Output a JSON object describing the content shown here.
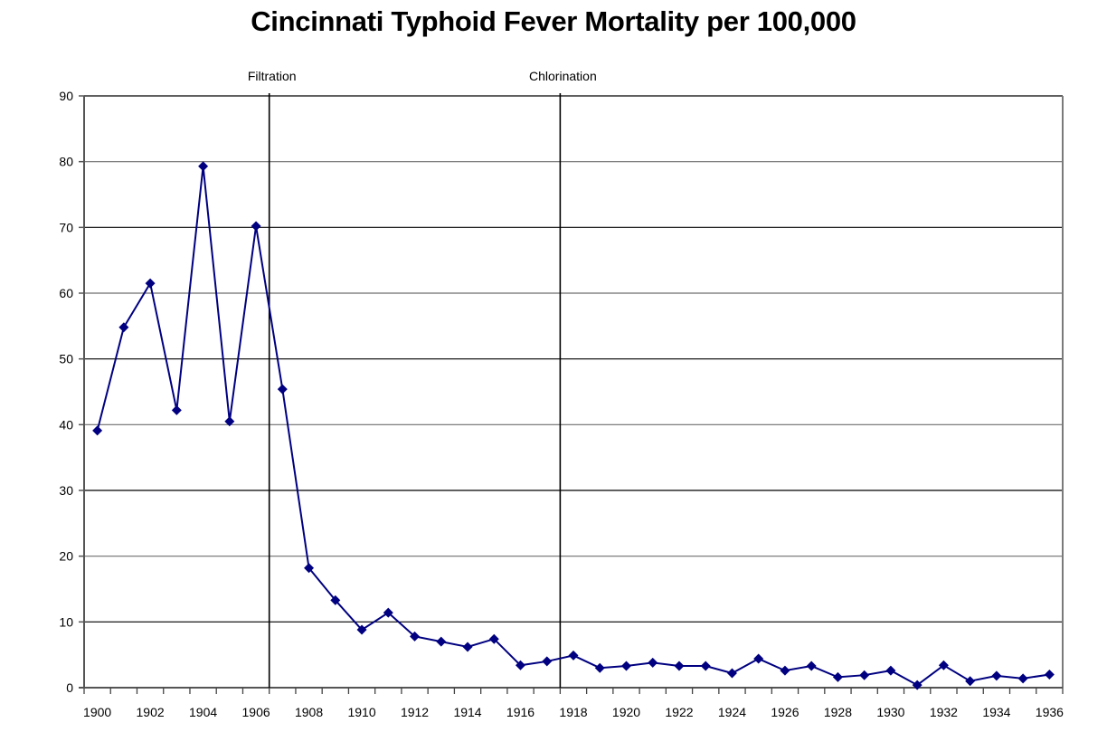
{
  "chart_data": {
    "type": "line",
    "title": "Cincinnati Typhoid Fever Mortality per 100,000",
    "xlabel": "",
    "ylabel": "",
    "ylim": [
      0,
      90
    ],
    "yticks": [
      0,
      10,
      20,
      30,
      40,
      50,
      60,
      70,
      80,
      90
    ],
    "grid": true,
    "legend": "none",
    "x": [
      1900,
      1901,
      1902,
      1903,
      1904,
      1905,
      1906,
      1907,
      1908,
      1909,
      1910,
      1911,
      1912,
      1913,
      1914,
      1915,
      1916,
      1917,
      1918,
      1919,
      1920,
      1921,
      1922,
      1923,
      1924,
      1925,
      1926,
      1927,
      1928,
      1929,
      1930,
      1931,
      1932,
      1933,
      1934,
      1935,
      1936
    ],
    "xtick_labels": [
      "1900",
      "1902",
      "1904",
      "1906",
      "1908",
      "1910",
      "1912",
      "1914",
      "1916",
      "1918",
      "1920",
      "1922",
      "1924",
      "1926",
      "1928",
      "1930",
      "1932",
      "1934",
      "1936"
    ],
    "series": [
      {
        "name": "Typhoid fever mortality per 100,000",
        "color": "#000080",
        "marker": "diamond",
        "values": [
          39.1,
          54.8,
          61.5,
          42.2,
          79.3,
          40.5,
          70.2,
          45.4,
          18.2,
          13.3,
          8.8,
          11.4,
          7.8,
          7.0,
          6.2,
          7.4,
          3.4,
          4.0,
          4.9,
          3.0,
          3.3,
          3.8,
          3.3,
          3.3,
          2.2,
          4.4,
          2.6,
          3.3,
          1.6,
          1.9,
          2.6,
          0.4,
          3.4,
          1.0,
          1.8,
          1.4,
          2.0
        ]
      }
    ],
    "annotations": [
      {
        "label": "Filtration",
        "between": [
          1906,
          1907
        ]
      },
      {
        "label": "Chlorination",
        "between": [
          1917,
          1918
        ]
      }
    ]
  }
}
